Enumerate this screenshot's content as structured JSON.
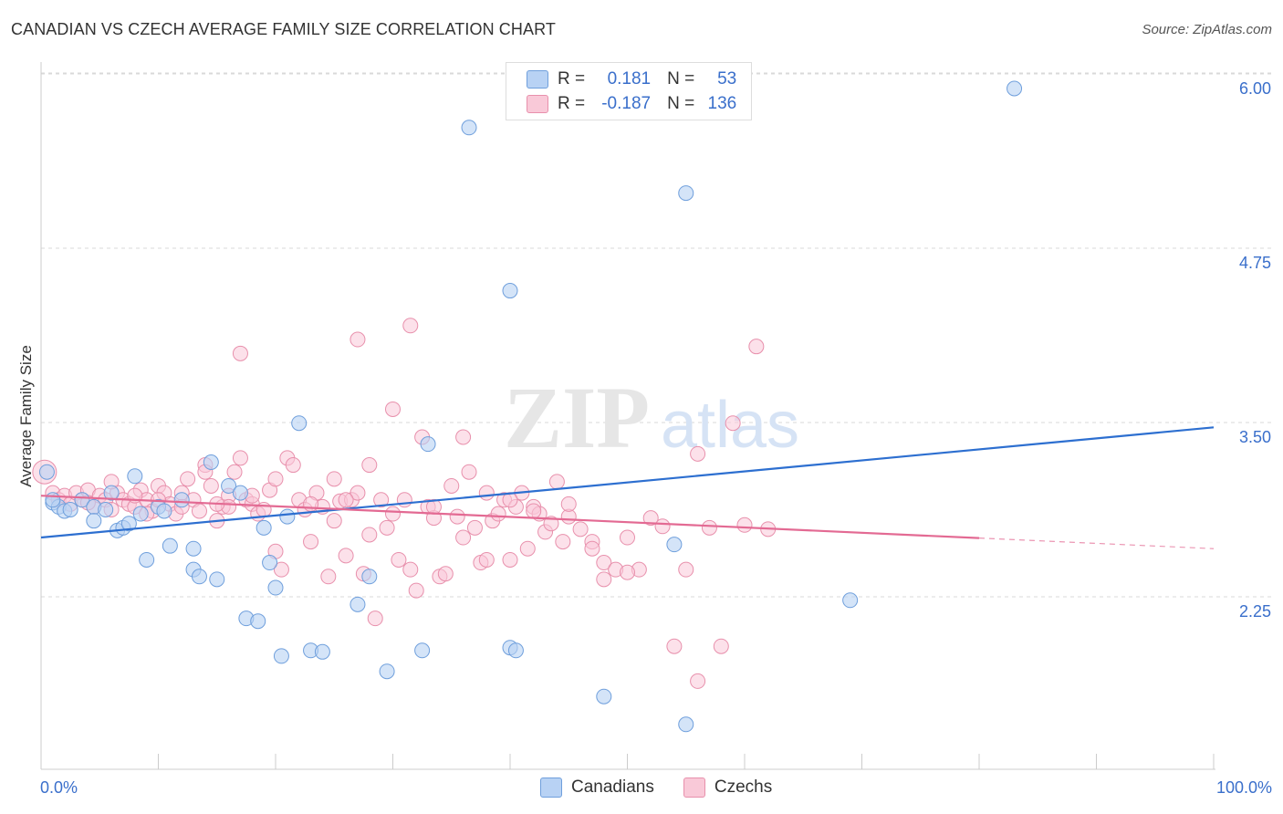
{
  "title": "CANADIAN VS CZECH AVERAGE FAMILY SIZE CORRELATION CHART",
  "source": "Source: ZipAtlas.com",
  "watermark": {
    "zip": "ZIP",
    "atlas": "atlas"
  },
  "legend": {
    "rows": [
      {
        "r_label": "R =",
        "r_value": "0.181",
        "n_label": "N =",
        "n_value": "53"
      },
      {
        "r_label": "R =",
        "r_value": "-0.187",
        "n_label": "N =",
        "n_value": "136"
      }
    ]
  },
  "bottom_legend": {
    "canadians": "Canadians",
    "czechs": "Czechs"
  },
  "colors": {
    "canadians_fill": "#b8d2f4",
    "canadians_stroke": "#6f9fdc",
    "canadians_line": "#2d6fd0",
    "czechs_fill": "#f9c9d8",
    "czechs_stroke": "#e890ac",
    "czechs_line": "#e36a93",
    "tick_label": "#3a6fcb",
    "grid": "#d9d9d9"
  },
  "chart_data": {
    "type": "scatter",
    "title": "CANADIAN VS CZECH AVERAGE FAMILY SIZE CORRELATION CHART",
    "xlabel": "",
    "ylabel": "Average Family Size",
    "xlim": [
      0,
      100
    ],
    "ylim": [
      1.25,
      6.1
    ],
    "x_tick_labels": [
      "0.0%",
      "100.0%"
    ],
    "y_ticks": [
      2.25,
      3.5,
      4.75,
      6.0
    ],
    "y_tick_labels": [
      "2.25",
      "3.50",
      "4.75",
      "6.00"
    ],
    "grid": true,
    "legend_position": "top-center",
    "series": [
      {
        "name": "Canadians",
        "trend": {
          "x0": 0,
          "y0": 2.78,
          "x1": 100,
          "y1": 3.57,
          "dashed_from": null
        },
        "points": [
          [
            0.5,
            3.25
          ],
          [
            1,
            3.03
          ],
          [
            1.5,
            3.0
          ],
          [
            2,
            2.97
          ],
          [
            2.5,
            2.98
          ],
          [
            3.5,
            3.05
          ],
          [
            4.5,
            3.0
          ],
          [
            4.5,
            2.9
          ],
          [
            5.5,
            2.98
          ],
          [
            6,
            3.1
          ],
          [
            6.5,
            2.83
          ],
          [
            7,
            2.85
          ],
          [
            7.5,
            2.88
          ],
          [
            8,
            3.22
          ],
          [
            8.5,
            2.95
          ],
          [
            9,
            2.62
          ],
          [
            10,
            3.0
          ],
          [
            10.5,
            2.97
          ],
          [
            11,
            2.72
          ],
          [
            12,
            3.05
          ],
          [
            13,
            2.7
          ],
          [
            13,
            2.55
          ],
          [
            13.5,
            2.5
          ],
          [
            14.5,
            3.32
          ],
          [
            15,
            2.48
          ],
          [
            16,
            3.15
          ],
          [
            17,
            3.1
          ],
          [
            17.5,
            2.2
          ],
          [
            18.5,
            2.18
          ],
          [
            19,
            2.85
          ],
          [
            19.5,
            2.6
          ],
          [
            20,
            2.42
          ],
          [
            20.5,
            1.93
          ],
          [
            21,
            2.93
          ],
          [
            22,
            3.6
          ],
          [
            23,
            1.97
          ],
          [
            24,
            1.96
          ],
          [
            27,
            2.3
          ],
          [
            28,
            2.5
          ],
          [
            29.5,
            1.82
          ],
          [
            32.5,
            1.97
          ],
          [
            33,
            3.45
          ],
          [
            36.5,
            5.72
          ],
          [
            40,
            1.99
          ],
          [
            40,
            4.55
          ],
          [
            40.5,
            1.97
          ],
          [
            48,
            1.64
          ],
          [
            54,
            2.73
          ],
          [
            55,
            5.25
          ],
          [
            55,
            1.44
          ],
          [
            69,
            2.33
          ],
          [
            83,
            6.0
          ],
          [
            1,
            3.05
          ]
        ]
      },
      {
        "name": "Czechs",
        "trend": {
          "x0": 0,
          "y0": 3.08,
          "x1": 100,
          "y1": 2.7,
          "dashed_from": 80
        },
        "points": [
          [
            0.3,
            3.25
          ],
          [
            1,
            3.1
          ],
          [
            1.5,
            3.05
          ],
          [
            2,
            3.08
          ],
          [
            2.5,
            3.02
          ],
          [
            3,
            3.1
          ],
          [
            3.5,
            3.05
          ],
          [
            4,
            3.12
          ],
          [
            4.5,
            3.0
          ],
          [
            5,
            3.08
          ],
          [
            5.5,
            3.05
          ],
          [
            6,
            2.98
          ],
          [
            6.5,
            3.1
          ],
          [
            7,
            3.05
          ],
          [
            7.5,
            3.02
          ],
          [
            8,
            3.0
          ],
          [
            8.5,
            3.12
          ],
          [
            9,
            3.05
          ],
          [
            9.5,
            2.97
          ],
          [
            10,
            3.15
          ],
          [
            10.5,
            3.1
          ],
          [
            11,
            3.02
          ],
          [
            11.5,
            2.95
          ],
          [
            12,
            3.1
          ],
          [
            12.5,
            3.2
          ],
          [
            13,
            3.05
          ],
          [
            13.5,
            2.97
          ],
          [
            14,
            3.3
          ],
          [
            14.5,
            3.15
          ],
          [
            15,
            2.9
          ],
          [
            15.5,
            3.0
          ],
          [
            16,
            3.08
          ],
          [
            16.5,
            3.25
          ],
          [
            17,
            3.35
          ],
          [
            17.5,
            3.05
          ],
          [
            18,
            3.02
          ],
          [
            18.5,
            2.95
          ],
          [
            19,
            2.98
          ],
          [
            19.5,
            3.12
          ],
          [
            20,
            2.68
          ],
          [
            20.5,
            2.55
          ],
          [
            21,
            3.35
          ],
          [
            21.5,
            3.3
          ],
          [
            22,
            3.05
          ],
          [
            22.5,
            2.98
          ],
          [
            23,
            2.75
          ],
          [
            23.5,
            3.1
          ],
          [
            24,
            3.0
          ],
          [
            24.5,
            2.5
          ],
          [
            25,
            2.9
          ],
          [
            25.5,
            3.04
          ],
          [
            26,
            2.65
          ],
          [
            26.5,
            3.05
          ],
          [
            27,
            3.1
          ],
          [
            27.5,
            2.52
          ],
          [
            28,
            3.3
          ],
          [
            28.5,
            2.2
          ],
          [
            29,
            3.05
          ],
          [
            29.5,
            2.85
          ],
          [
            30,
            3.7
          ],
          [
            30.5,
            2.62
          ],
          [
            31,
            3.05
          ],
          [
            31.5,
            2.55
          ],
          [
            32,
            2.4
          ],
          [
            32.5,
            3.5
          ],
          [
            33,
            3.0
          ],
          [
            33.5,
            2.92
          ],
          [
            34,
            2.5
          ],
          [
            34.5,
            2.52
          ],
          [
            35,
            3.15
          ],
          [
            35.5,
            2.93
          ],
          [
            36,
            2.78
          ],
          [
            36.5,
            3.25
          ],
          [
            37,
            2.85
          ],
          [
            37.5,
            2.6
          ],
          [
            38,
            2.62
          ],
          [
            38.5,
            2.9
          ],
          [
            39,
            2.95
          ],
          [
            39.5,
            3.05
          ],
          [
            40,
            2.62
          ],
          [
            40.5,
            3.0
          ],
          [
            41,
            3.1
          ],
          [
            41.5,
            2.7
          ],
          [
            42,
            3.0
          ],
          [
            42.5,
            2.95
          ],
          [
            43,
            2.82
          ],
          [
            44,
            3.18
          ],
          [
            44.5,
            2.75
          ],
          [
            45,
            2.93
          ],
          [
            46,
            2.84
          ],
          [
            47,
            2.75
          ],
          [
            48,
            2.6
          ],
          [
            49,
            2.55
          ],
          [
            50,
            2.78
          ],
          [
            51,
            2.55
          ],
          [
            53,
            2.86
          ],
          [
            55,
            2.55
          ],
          [
            56,
            3.38
          ],
          [
            57,
            2.85
          ],
          [
            59,
            3.6
          ],
          [
            60,
            2.87
          ],
          [
            61,
            4.15
          ],
          [
            62,
            2.84
          ],
          [
            8,
            3.08
          ],
          [
            9,
            2.95
          ],
          [
            12,
            3.0
          ],
          [
            14,
            3.25
          ],
          [
            16,
            3.0
          ],
          [
            18,
            3.08
          ],
          [
            20,
            3.2
          ],
          [
            23,
            3.02
          ],
          [
            25,
            3.2
          ],
          [
            26,
            3.05
          ],
          [
            28,
            2.8
          ],
          [
            30,
            2.95
          ],
          [
            31.5,
            4.3
          ],
          [
            33.5,
            3.0
          ],
          [
            36,
            3.5
          ],
          [
            38,
            3.1
          ],
          [
            40,
            3.05
          ],
          [
            42,
            2.97
          ],
          [
            43.5,
            2.88
          ],
          [
            45,
            3.02
          ],
          [
            47,
            2.7
          ],
          [
            48,
            2.48
          ],
          [
            50,
            2.53
          ],
          [
            52,
            2.92
          ],
          [
            54,
            2.0
          ],
          [
            56,
            1.75
          ],
          [
            58,
            2.0
          ],
          [
            4,
            3.03
          ],
          [
            6,
            3.18
          ],
          [
            10,
            3.05
          ],
          [
            27,
            4.2
          ],
          [
            17,
            4.1
          ],
          [
            15,
            3.02
          ]
        ]
      }
    ]
  }
}
